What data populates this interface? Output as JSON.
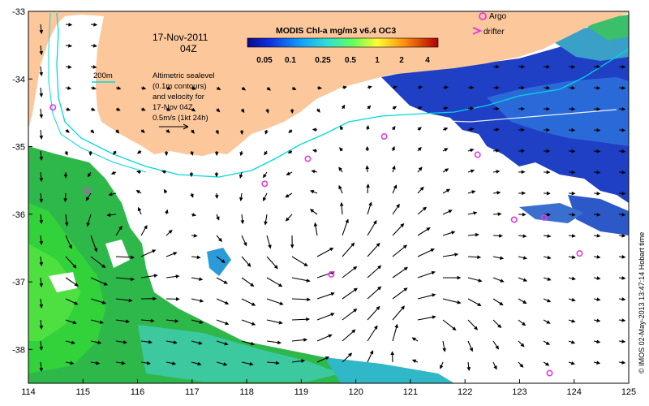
{
  "map": {
    "date": "17-Nov-2011",
    "time": "04Z",
    "isobath_label": "200m",
    "sealevel_note": [
      "Altimetric sealevel",
      "(0.1m contours)",
      "and velocity for",
      "17-Nov 04Z",
      "0.5m/s (1kt 24h)"
    ],
    "colorbar_title": "MODIS Chl-a mg/m3 v6.4 OC3",
    "colorbar_ticks": [
      "0.05",
      "0.1",
      "0.25",
      "0.5",
      "1",
      "2",
      "4"
    ],
    "legend_argo": "Argo",
    "legend_drifter": "drifter",
    "credit": "© IMOS 02-May-2013 13:47:14 Hobart time",
    "x_ticks": [
      "114",
      "115",
      "116",
      "117",
      "118",
      "119",
      "120",
      "121",
      "122",
      "123",
      "124",
      "125"
    ],
    "y_ticks": [
      "-33",
      "-34",
      "-35",
      "-36",
      "-37",
      "-38"
    ],
    "lon_range": [
      114,
      125
    ],
    "lat_range": [
      -38.5,
      -33
    ],
    "colors": {
      "land": "#fcc79b",
      "chl_low": "#0b2fa8",
      "chl_high": "#3ac93a",
      "argo": "#e23ce0",
      "shelf": "#00d8e0"
    },
    "argo_floats": [
      [
        114.45,
        -34.42
      ],
      [
        115.08,
        -35.65
      ],
      [
        118.33,
        -35.55
      ],
      [
        119.12,
        -35.18
      ],
      [
        120.52,
        -34.85
      ],
      [
        122.23,
        -35.12
      ],
      [
        122.9,
        -36.08
      ],
      [
        123.45,
        -36.05
      ],
      [
        124.1,
        -36.58
      ],
      [
        119.55,
        -36.89
      ],
      [
        123.55,
        -38.35
      ]
    ]
  }
}
